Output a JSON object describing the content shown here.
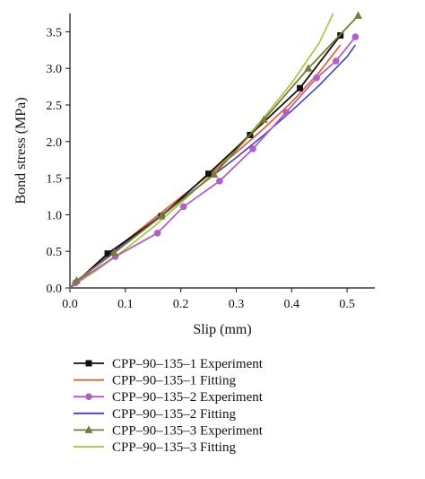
{
  "chart_data": {
    "type": "line",
    "title": "",
    "xlabel": "Slip (mm)",
    "ylabel": "Bond stress (MPa)",
    "xlim": [
      0.0,
      0.55
    ],
    "ylim": [
      0.0,
      3.75
    ],
    "xticks": [
      "0.0",
      "0.1",
      "0.2",
      "0.3",
      "0.4",
      "0.5"
    ],
    "yticks": [
      "0.0",
      "0.5",
      "1.0",
      "1.5",
      "2.0",
      "2.5",
      "3.0",
      "3.5"
    ],
    "xtick_values": [
      0.0,
      0.1,
      0.2,
      0.3,
      0.4,
      0.5
    ],
    "ytick_values": [
      0.0,
      0.5,
      1.0,
      1.5,
      2.0,
      2.5,
      3.0,
      3.5
    ],
    "grid": false,
    "legend_position": "bottom",
    "series": [
      {
        "name": "CPP–90–135–1 Experiment",
        "color": "#111111",
        "marker": "square",
        "line": true,
        "x": [
          0.0,
          0.068,
          0.165,
          0.25,
          0.325,
          0.415,
          0.488
        ],
        "y": [
          0.0,
          0.47,
          0.98,
          1.56,
          2.09,
          2.73,
          3.45
        ]
      },
      {
        "name": "CPP–90–135–1 Fitting",
        "color": "#e0582a",
        "marker": "none",
        "line": true,
        "x": [
          0.0,
          0.05,
          0.1,
          0.15,
          0.2,
          0.25,
          0.3,
          0.35,
          0.4,
          0.45,
          0.488
        ],
        "y": [
          0.0,
          0.33,
          0.64,
          0.94,
          1.24,
          1.54,
          1.85,
          2.18,
          2.54,
          2.95,
          3.32
        ]
      },
      {
        "name": "CPP–90–135–2 Experiment",
        "color": "#b25ec2",
        "marker": "circle",
        "line": true,
        "x": [
          0.0,
          0.01,
          0.082,
          0.158,
          0.205,
          0.27,
          0.33,
          0.39,
          0.445,
          0.48,
          0.515
        ],
        "y": [
          0.0,
          0.07,
          0.43,
          0.75,
          1.11,
          1.46,
          1.9,
          2.4,
          2.87,
          3.1,
          3.43
        ]
      },
      {
        "name": "CPP–90–135–2 Fitting",
        "color": "#3f3fbf",
        "marker": "none",
        "line": true,
        "x": [
          0.0,
          0.05,
          0.1,
          0.15,
          0.2,
          0.25,
          0.3,
          0.35,
          0.4,
          0.45,
          0.5,
          0.515
        ],
        "y": [
          0.0,
          0.32,
          0.62,
          0.91,
          1.2,
          1.49,
          1.78,
          2.09,
          2.42,
          2.77,
          3.16,
          3.32
        ]
      },
      {
        "name": "CPP–90–135–3 Experiment",
        "color": "#7a7a3a",
        "marker": "triangle",
        "line": true,
        "x": [
          0.0,
          0.012,
          0.08,
          0.165,
          0.26,
          0.35,
          0.43,
          0.52
        ],
        "y": [
          0.0,
          0.1,
          0.48,
          0.98,
          1.55,
          2.3,
          3.0,
          3.72
        ]
      },
      {
        "name": "CPP–90–135–3 Fitting",
        "color": "#9cc83c",
        "marker": "none",
        "line": true,
        "x": [
          0.0,
          0.05,
          0.1,
          0.15,
          0.2,
          0.25,
          0.3,
          0.35,
          0.4,
          0.45,
          0.475
        ],
        "y": [
          0.0,
          0.25,
          0.53,
          0.83,
          1.16,
          1.51,
          1.9,
          2.33,
          2.8,
          3.35,
          3.75
        ]
      }
    ]
  }
}
